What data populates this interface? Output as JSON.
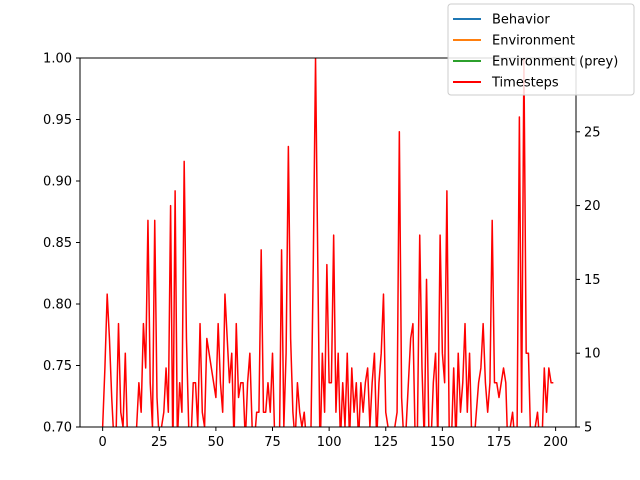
{
  "chart_data": {
    "type": "line",
    "title": "",
    "xlabel": "",
    "ylabel_left": "",
    "ylabel_right": "",
    "xlim": [
      -10,
      209
    ],
    "ylim_left": [
      0.7,
      1.0
    ],
    "ylim_right": [
      5,
      30
    ],
    "x_ticks": [
      0,
      25,
      50,
      75,
      100,
      125,
      150,
      175,
      200
    ],
    "y_left_ticks": [
      "0.70",
      "0.75",
      "0.80",
      "0.85",
      "0.90",
      "0.95",
      "1.00"
    ],
    "y_right_ticks": [
      "5",
      "10",
      "15",
      "20",
      "25"
    ],
    "grid": false,
    "legend_position": "upper-right",
    "legend": [
      {
        "name": "Behavior",
        "color": "#1f77b4"
      },
      {
        "name": "Environment",
        "color": "#ff7f0e"
      },
      {
        "name": "Environment (prey)",
        "color": "#2ca02c"
      },
      {
        "name": "Timesteps",
        "color": "#ff0000"
      }
    ],
    "series": [
      {
        "name": "Behavior",
        "axis": "left",
        "color": "#1f77b4",
        "values": []
      },
      {
        "name": "Environment",
        "axis": "left",
        "color": "#ff7f0e",
        "values": []
      },
      {
        "name": "Environment (prey)",
        "axis": "left",
        "color": "#2ca02c",
        "values": []
      },
      {
        "name": "Timesteps",
        "axis": "right",
        "color": "#ff0000",
        "x": [
          0,
          1,
          2,
          3,
          4,
          5,
          6,
          7,
          8,
          9,
          10,
          11,
          12,
          13,
          14,
          15,
          16,
          17,
          18,
          19,
          20,
          21,
          22,
          23,
          24,
          25,
          26,
          27,
          28,
          29,
          30,
          31,
          32,
          33,
          34,
          35,
          36,
          37,
          38,
          39,
          40,
          41,
          42,
          43,
          44,
          45,
          46,
          47,
          48,
          49,
          50,
          51,
          52,
          53,
          54,
          55,
          56,
          57,
          58,
          59,
          60,
          61,
          62,
          63,
          64,
          65,
          66,
          67,
          68,
          69,
          70,
          71,
          72,
          73,
          74,
          75,
          76,
          77,
          78,
          79,
          80,
          81,
          82,
          83,
          84,
          85,
          86,
          87,
          88,
          89,
          90,
          91,
          92,
          93,
          94,
          95,
          96,
          97,
          98,
          99,
          100,
          101,
          102,
          103,
          104,
          105,
          106,
          107,
          108,
          109,
          110,
          111,
          112,
          113,
          114,
          115,
          116,
          117,
          118,
          119,
          120,
          121,
          122,
          123,
          124,
          125,
          126,
          127,
          128,
          129,
          130,
          131,
          132,
          133,
          134,
          135,
          136,
          137,
          138,
          139,
          140,
          141,
          142,
          143,
          144,
          145,
          146,
          147,
          148,
          149,
          150,
          151,
          152,
          153,
          154,
          155,
          156,
          157,
          158,
          159,
          160,
          161,
          162,
          163,
          164,
          165,
          166,
          167,
          168,
          169,
          170,
          171,
          172,
          173,
          174,
          175,
          176,
          177,
          178,
          179,
          180,
          181,
          182,
          183,
          184,
          185,
          186,
          187,
          188,
          189,
          190,
          191,
          192,
          193,
          194,
          195,
          196,
          197,
          198,
          199
        ],
        "values": [
          5,
          9,
          14,
          11,
          7,
          4,
          5,
          12,
          6,
          5,
          10,
          4,
          3,
          4,
          3,
          5,
          8,
          6,
          12,
          9,
          19,
          8,
          5,
          19,
          7,
          4,
          5,
          6,
          9,
          6,
          20,
          3,
          21,
          4,
          8,
          6,
          23,
          11,
          5,
          4,
          8,
          8,
          5,
          12,
          6,
          5,
          11,
          10,
          9,
          8,
          7,
          12,
          8,
          6,
          14,
          11,
          8,
          10,
          4,
          12,
          7,
          8,
          8,
          4,
          8,
          10,
          5,
          4,
          6,
          6,
          17,
          6,
          6,
          8,
          6,
          10,
          4,
          5,
          3,
          17,
          5,
          10,
          24,
          11,
          6,
          4,
          8,
          6,
          5,
          6,
          4,
          4,
          5,
          16,
          30,
          16,
          3,
          10,
          6,
          16,
          8,
          8,
          18,
          6,
          10,
          4,
          8,
          5,
          10,
          4,
          9,
          6,
          8,
          4,
          8,
          6,
          8,
          9,
          5,
          8,
          10,
          4,
          8,
          10,
          14,
          6,
          5,
          4,
          3,
          5,
          6,
          25,
          7,
          4,
          5,
          8,
          11,
          12,
          4,
          5,
          18,
          9,
          4,
          15,
          5,
          4,
          8,
          10,
          4,
          18,
          10,
          8,
          21,
          5,
          4,
          9,
          4,
          10,
          6,
          8,
          12,
          6,
          10,
          4,
          4,
          6,
          8,
          9,
          12,
          8,
          6,
          8,
          19,
          8,
          8,
          7,
          8,
          9,
          8,
          3,
          5,
          6,
          4,
          5,
          26,
          6,
          30,
          10,
          10,
          4,
          4,
          5,
          6,
          4,
          4,
          9,
          6,
          9,
          8,
          8
        ]
      }
    ]
  }
}
